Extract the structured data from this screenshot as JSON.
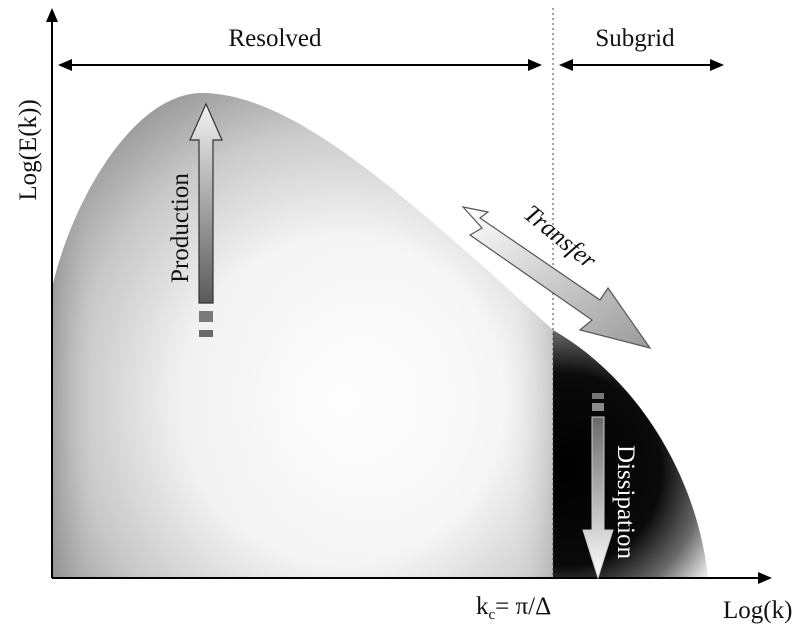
{
  "diagram": {
    "y_axis_label": "Log(E(k))",
    "x_axis_label": "Log(k)",
    "cutoff_label": "k",
    "cutoff_subscript": "c",
    "cutoff_expression": "= π/Δ",
    "regions": {
      "resolved": "Resolved",
      "subgrid": "Subgrid"
    },
    "arrows": {
      "production": "Production",
      "transfer": "Transfer",
      "dissipation": "Dissipation"
    }
  }
}
